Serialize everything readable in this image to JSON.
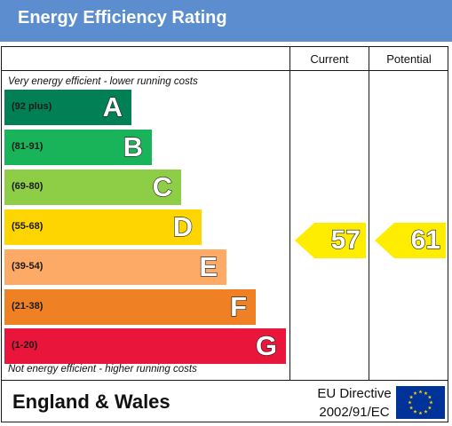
{
  "header": {
    "title": "Energy Efficiency Rating"
  },
  "columns": {
    "current": "Current",
    "potential": "Potential"
  },
  "captions": {
    "top": "Very energy efficient - lower running costs",
    "bottom": "Not energy efficient - higher running costs"
  },
  "footer": {
    "country": "England & Wales",
    "directive_line1": "EU Directive",
    "directive_line2": "2002/91/EC",
    "flag_icon": "eu-flag-icon"
  },
  "chart_data": {
    "type": "table",
    "bands": [
      {
        "letter": "A",
        "range": "(92 plus)",
        "min": 92,
        "max": 100,
        "color": "#008054"
      },
      {
        "letter": "B",
        "range": "(81-91)",
        "min": 81,
        "max": 91,
        "color": "#19b459"
      },
      {
        "letter": "C",
        "range": "(69-80)",
        "min": 69,
        "max": 80,
        "color": "#8dce46"
      },
      {
        "letter": "D",
        "range": "(55-68)",
        "min": 55,
        "max": 68,
        "color": "#ffd500"
      },
      {
        "letter": "E",
        "range": "(39-54)",
        "min": 39,
        "max": 54,
        "color": "#fcaa65"
      },
      {
        "letter": "F",
        "range": "(21-38)",
        "min": 21,
        "max": 38,
        "color": "#ef8023"
      },
      {
        "letter": "G",
        "range": "(1-20)",
        "min": 1,
        "max": 20,
        "color": "#e9153b"
      }
    ],
    "current": {
      "value": 57,
      "band": "D"
    },
    "potential": {
      "value": 61,
      "band": "D"
    },
    "indicator_color": "#ffed00"
  }
}
